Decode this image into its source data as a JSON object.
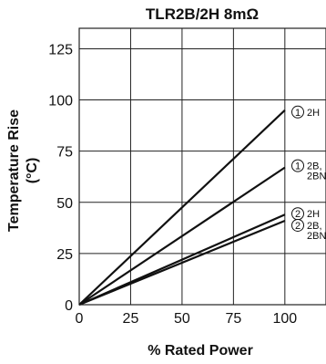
{
  "chart_data": {
    "type": "line",
    "title": "TLR2B/2H 8mΩ",
    "xlabel": "% Rated Power",
    "ylabel_line1": "Temperature Rise",
    "ylabel_line2": "(°C)",
    "xlim": [
      0,
      120
    ],
    "ylim": [
      0,
      135
    ],
    "xticks": [
      0,
      25,
      50,
      75,
      100
    ],
    "yticks": [
      0,
      25,
      50,
      75,
      100,
      125
    ],
    "grid": true,
    "series": [
      {
        "marker": "1",
        "label_lines": [
          "2H"
        ],
        "x": [
          0,
          100
        ],
        "y": [
          0,
          95
        ]
      },
      {
        "marker": "1",
        "label_lines": [
          "2B,",
          "2BN"
        ],
        "x": [
          0,
          100
        ],
        "y": [
          0,
          67
        ]
      },
      {
        "marker": "2",
        "label_lines": [
          "2H"
        ],
        "x": [
          0,
          100
        ],
        "y": [
          0,
          44
        ]
      },
      {
        "marker": "2",
        "label_lines": [
          "2B,",
          "2BN"
        ],
        "x": [
          0,
          100
        ],
        "y": [
          0,
          41
        ]
      }
    ]
  }
}
